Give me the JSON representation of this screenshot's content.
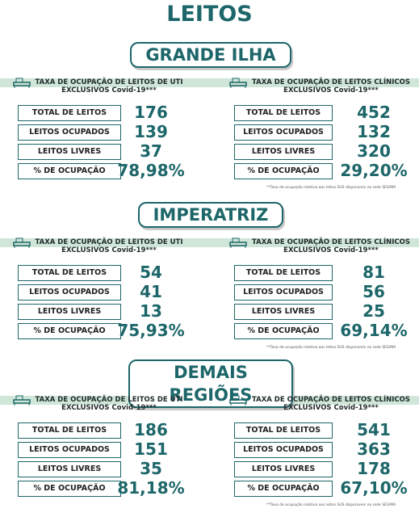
{
  "title": "LEITOS",
  "sections": [
    {
      "name": "GRANDE ILHA",
      "panels": [
        {
          "heading_lines": [
            "TAXA DE OCUPAÇÃO DE LEITOS DE UTI",
            "EXCLUSIVOS Covid-19***"
          ],
          "rows": [
            {
              "label": "TOTAL DE LEITOS",
              "value": "176"
            },
            {
              "label": "LEITOS OCUPADOS",
              "value": "139"
            },
            {
              "label": "LEITOS LIVRES",
              "value": "37"
            },
            {
              "label": "% DE OCUPAÇÃO",
              "value": "78,98%"
            }
          ]
        },
        {
          "heading_lines": [
            "TAXA DE OCUPAÇÃO DE LEITOS CLÍNICOS",
            "EXCLUSIVOS Covid-19***"
          ],
          "rows": [
            {
              "label": "TOTAL DE LEITOS",
              "value": "452"
            },
            {
              "label": "LEITOS OCUPADOS",
              "value": "132"
            },
            {
              "label": "LEITOS LIVRES",
              "value": "320"
            },
            {
              "label": "% DE OCUPAÇÃO",
              "value": "29,20%"
            }
          ]
        }
      ],
      "footnote": "**Taxa de ocupação relativa aos leitos SUS disponíveis na rede SES/MA"
    },
    {
      "name": "IMPERATRIZ",
      "panels": [
        {
          "heading_lines": [
            "TAXA DE OCUPAÇÃO DE LEITOS DE UTI",
            "EXCLUSIVOS Covid-19***"
          ],
          "rows": [
            {
              "label": "TOTAL DE LEITOS",
              "value": "54"
            },
            {
              "label": "LEITOS OCUPADOS",
              "value": "41"
            },
            {
              "label": "LEITOS LIVRES",
              "value": "13"
            },
            {
              "label": "% DE OCUPAÇÃO",
              "value": "75,93%"
            }
          ]
        },
        {
          "heading_lines": [
            "TAXA DE OCUPAÇÃO DE LEITOS CLÍNICOS",
            "EXCLUSIVOS Covid-19***"
          ],
          "rows": [
            {
              "label": "TOTAL DE LEITOS",
              "value": "81"
            },
            {
              "label": "LEITOS OCUPADOS",
              "value": "56"
            },
            {
              "label": "LEITOS LIVRES",
              "value": "25"
            },
            {
              "label": "% DE OCUPAÇÃO",
              "value": "69,14%"
            }
          ]
        }
      ],
      "footnote": "**Taxa de ocupação relativa aos leitos SUS disponíveis na rede SES/MA"
    },
    {
      "name": "DEMAIS REGIÕES",
      "panels": [
        {
          "heading_lines": [
            "TAXA DE OCUPAÇÃO DE LEITOS DE UTI",
            "EXCLUSIVOS Covid-19***"
          ],
          "rows": [
            {
              "label": "TOTAL DE LEITOS",
              "value": "186"
            },
            {
              "label": "LEITOS OCUPADOS",
              "value": "151"
            },
            {
              "label": "LEITOS LIVRES",
              "value": "35"
            },
            {
              "label": "% DE OCUPAÇÃO",
              "value": "81,18%"
            }
          ]
        },
        {
          "heading_lines": [
            "TAXA DE OCUPAÇÃO DE LEITOS CLÍNICOS",
            "EXCLUSIVOS Covid-19***"
          ],
          "rows": [
            {
              "label": "TOTAL DE LEITOS",
              "value": "541"
            },
            {
              "label": "LEITOS OCUPADOS",
              "value": "363"
            },
            {
              "label": "LEITOS LIVRES",
              "value": "178"
            },
            {
              "label": "% DE OCUPAÇÃO",
              "value": "67,10%"
            }
          ]
        }
      ],
      "footnote": "**Taxa de ocupação relativa aos leitos SUS disponíveis na rede SES/MA"
    }
  ]
}
